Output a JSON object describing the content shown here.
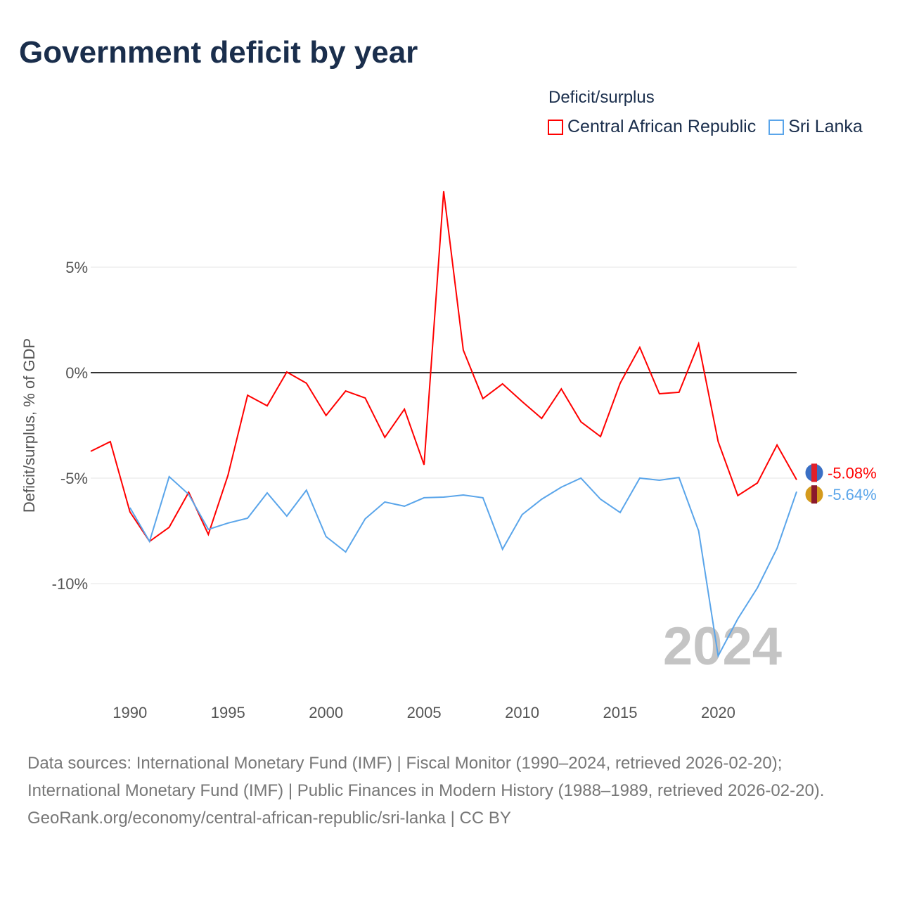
{
  "title": "Government deficit by year",
  "legend_title": "Deficit/surplus",
  "footer": {
    "sources": "Data sources: International Monetary Fund (IMF) | Fiscal Monitor (1990–2024, retrieved 2026-02-20); International Monetary Fund (IMF) | Public Finances in Modern History (1988–1989, retrieved 2026-02-20).",
    "link": "GeoRank.org/economy/central-african-republic/sri-lanka | CC BY"
  },
  "chart_data": {
    "type": "line",
    "title": "Government deficit by year",
    "xlabel": "",
    "ylabel": "Deficit/surplus, % of GDP",
    "xlim": [
      1988,
      2024
    ],
    "ylim": [
      -15,
      12
    ],
    "yticks": [
      5,
      0,
      -5,
      -10
    ],
    "ytick_labels": [
      "5%",
      "0%",
      "-5%",
      "-10%"
    ],
    "xticks": [
      1990,
      1995,
      2000,
      2005,
      2010,
      2015,
      2020
    ],
    "xtick_labels": [
      "1990",
      "1995",
      "2000",
      "2005",
      "2010",
      "2015",
      "2020"
    ],
    "year_watermark": "2024",
    "legend_position": "top-right",
    "series": [
      {
        "name": "Central African Republic",
        "color": "#ff0000",
        "end_label": "-5.08%",
        "start_year": 1988,
        "values": [
          -3.73,
          -3.27,
          -6.6,
          -8.0,
          -7.33,
          -5.67,
          -7.67,
          -4.87,
          -1.07,
          -1.57,
          0.03,
          -0.5,
          -2.03,
          -0.87,
          -1.2,
          -3.07,
          -1.73,
          -4.37,
          8.6,
          1.07,
          -1.23,
          -0.53,
          -1.37,
          -2.17,
          -0.77,
          -2.33,
          -3.03,
          -0.5,
          1.2,
          -1.0,
          -0.93,
          1.37,
          -3.27,
          -5.83,
          -5.23,
          -3.43,
          -5.08
        ]
      },
      {
        "name": "Sri Lanka",
        "color": "#5aa5ea",
        "end_label": "-5.64%",
        "start_year": 1990,
        "values": [
          -6.4,
          -8.0,
          -4.93,
          -5.77,
          -7.43,
          -7.13,
          -6.9,
          -5.7,
          -6.8,
          -5.57,
          -7.77,
          -8.5,
          -6.93,
          -6.13,
          -6.33,
          -5.93,
          -5.9,
          -5.8,
          -5.93,
          -8.37,
          -6.73,
          -6.0,
          -5.43,
          -5.0,
          -6.0,
          -6.63,
          -5.0,
          -5.1,
          -4.97,
          -7.5,
          -13.43,
          -11.67,
          -10.2,
          -8.33,
          -5.64
        ]
      }
    ]
  }
}
